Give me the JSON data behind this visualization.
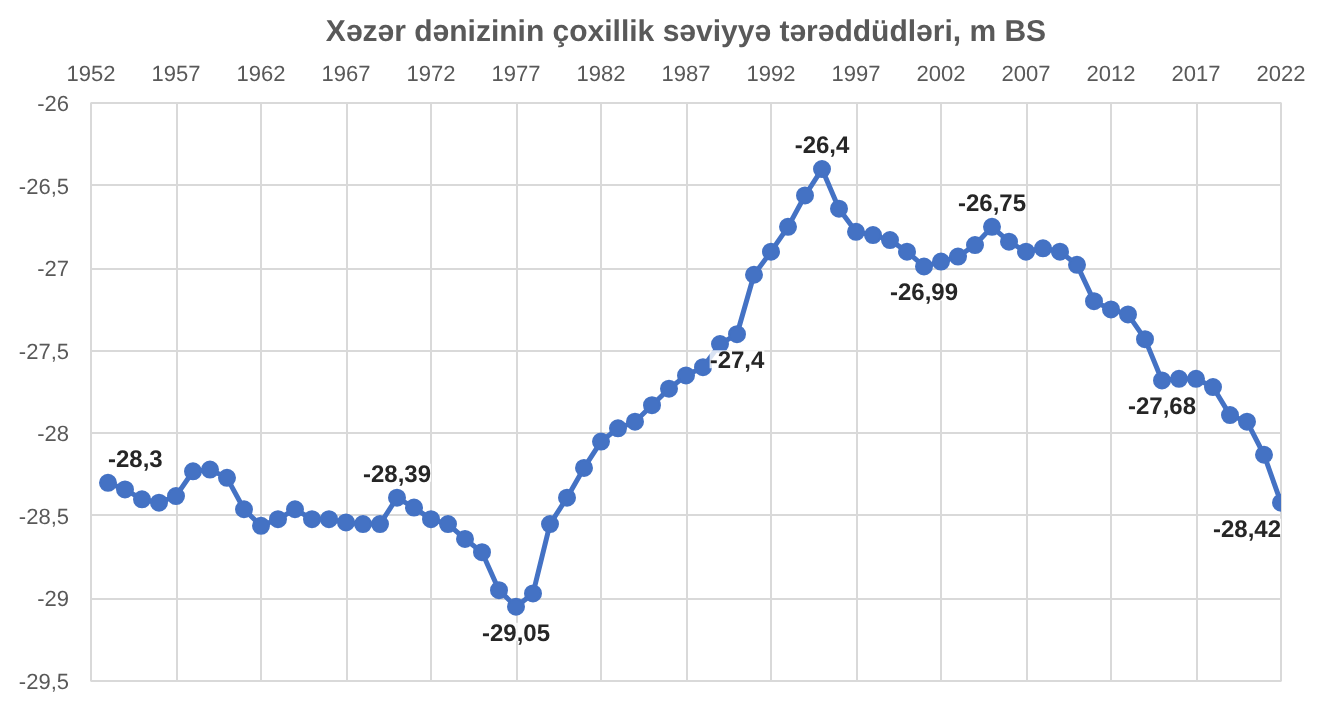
{
  "chart_data": {
    "type": "line",
    "title": "Xəzər dənizinin çoxillik səviyyə tərəddüdləri, m BS",
    "x": [
      1953,
      1954,
      1955,
      1956,
      1957,
      1958,
      1959,
      1960,
      1961,
      1962,
      1963,
      1964,
      1965,
      1966,
      1967,
      1968,
      1969,
      1970,
      1971,
      1972,
      1973,
      1974,
      1975,
      1976,
      1977,
      1978,
      1979,
      1980,
      1981,
      1982,
      1983,
      1984,
      1985,
      1986,
      1987,
      1988,
      1989,
      1990,
      1991,
      1992,
      1993,
      1994,
      1995,
      1996,
      1997,
      1998,
      1999,
      2000,
      2001,
      2002,
      2003,
      2004,
      2005,
      2006,
      2007,
      2008,
      2009,
      2010,
      2011,
      2012,
      2013,
      2014,
      2015,
      2016,
      2017,
      2018,
      2019,
      2020,
      2021,
      2022
    ],
    "series": [
      {
        "color": "#4472c4",
        "values": [
          -28.3,
          -28.34,
          -28.4,
          -28.42,
          -28.38,
          -28.23,
          -28.22,
          -28.27,
          -28.46,
          -28.56,
          -28.52,
          -28.46,
          -28.52,
          -28.52,
          -28.54,
          -28.55,
          -28.55,
          -28.39,
          -28.45,
          -28.52,
          -28.55,
          -28.64,
          -28.72,
          -28.95,
          -29.05,
          -28.97,
          -28.55,
          -28.39,
          -28.21,
          -28.05,
          -27.97,
          -27.93,
          -27.83,
          -27.73,
          -27.65,
          -27.6,
          -27.46,
          -27.4,
          -27.04,
          -26.9,
          -26.75,
          -26.56,
          -26.4,
          -26.64,
          -26.78,
          -26.8,
          -26.83,
          -26.9,
          -26.99,
          -26.96,
          -26.93,
          -26.86,
          -26.75,
          -26.84,
          -26.9,
          -26.88,
          -26.9,
          -26.98,
          -27.2,
          -27.25,
          -27.28,
          -27.43,
          -27.68,
          -27.67,
          -27.67,
          -27.72,
          -27.89,
          -27.93,
          -28.13,
          -28.42
        ],
        "value_labels": [
          "-28,3",
          null,
          null,
          null,
          null,
          null,
          null,
          null,
          null,
          null,
          null,
          null,
          null,
          null,
          null,
          null,
          null,
          "-28,39",
          null,
          null,
          null,
          null,
          null,
          null,
          "-29,05",
          null,
          null,
          null,
          null,
          null,
          null,
          null,
          null,
          null,
          null,
          null,
          null,
          "-27,4",
          null,
          null,
          null,
          null,
          "-26,4",
          null,
          null,
          null,
          null,
          null,
          "-26,99",
          null,
          null,
          null,
          "-26,75",
          null,
          null,
          null,
          null,
          null,
          null,
          null,
          null,
          null,
          "-27,68",
          null,
          null,
          null,
          null,
          null,
          null,
          "-28,42"
        ]
      }
    ],
    "xlim": [
      1952,
      2022
    ],
    "xticks": [
      1952,
      1957,
      1962,
      1967,
      1972,
      1977,
      1982,
      1987,
      1992,
      1997,
      2002,
      2007,
      2012,
      2017,
      2022
    ],
    "ylim": [
      -29.5,
      -26
    ],
    "yticks": [
      {
        "value": -26,
        "label": "-26"
      },
      {
        "value": -26.5,
        "label": "-26,5"
      },
      {
        "value": -27,
        "label": "-27"
      },
      {
        "value": -27.5,
        "label": "-27,5"
      },
      {
        "value": -28,
        "label": "-28"
      },
      {
        "value": -28.5,
        "label": "-28,5"
      },
      {
        "value": -29,
        "label": "-29"
      },
      {
        "value": -29.5,
        "label": "-29,5"
      }
    ],
    "grid": true,
    "marker": "circle",
    "line_style": "solid"
  }
}
